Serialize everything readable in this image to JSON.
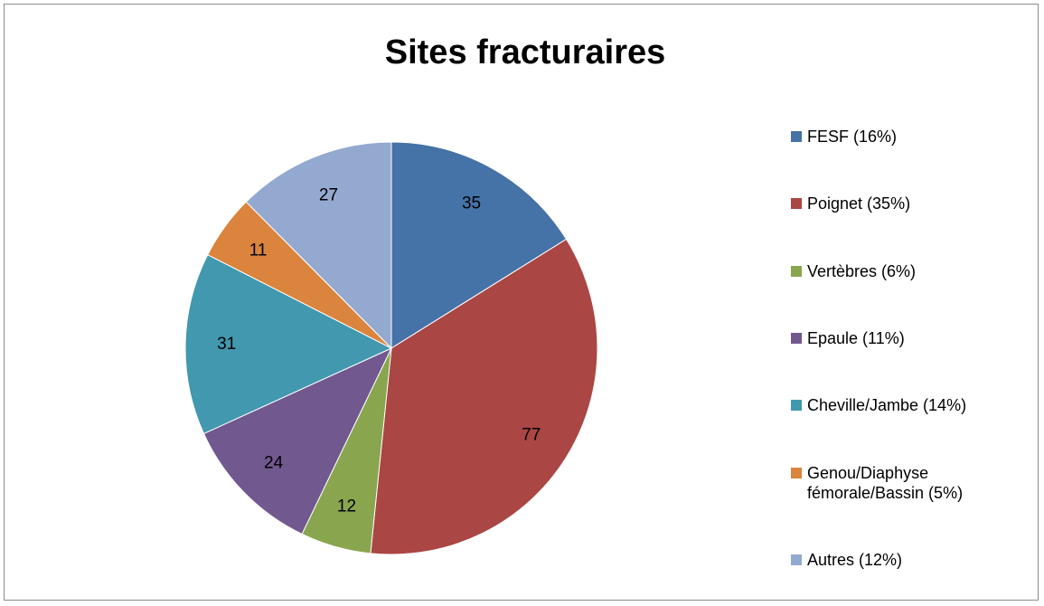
{
  "chart_data": {
    "type": "pie",
    "title": "Sites fracturaires",
    "categories": [
      "FESF (16%)",
      "Poignet (35%)",
      "Vertèbres (6%)",
      "Epaule (11%)",
      "Cheville/Jambe (14%)",
      "Genou/Diaphyse fémorale/Bassin (5%)",
      "Autres (12%)"
    ],
    "values": [
      35,
      77,
      12,
      24,
      31,
      11,
      27
    ],
    "colors": [
      "#4572a7",
      "#aa4643",
      "#89a54e",
      "#71588f",
      "#4198af",
      "#db843d",
      "#93a9cf"
    ],
    "legend": "right"
  }
}
